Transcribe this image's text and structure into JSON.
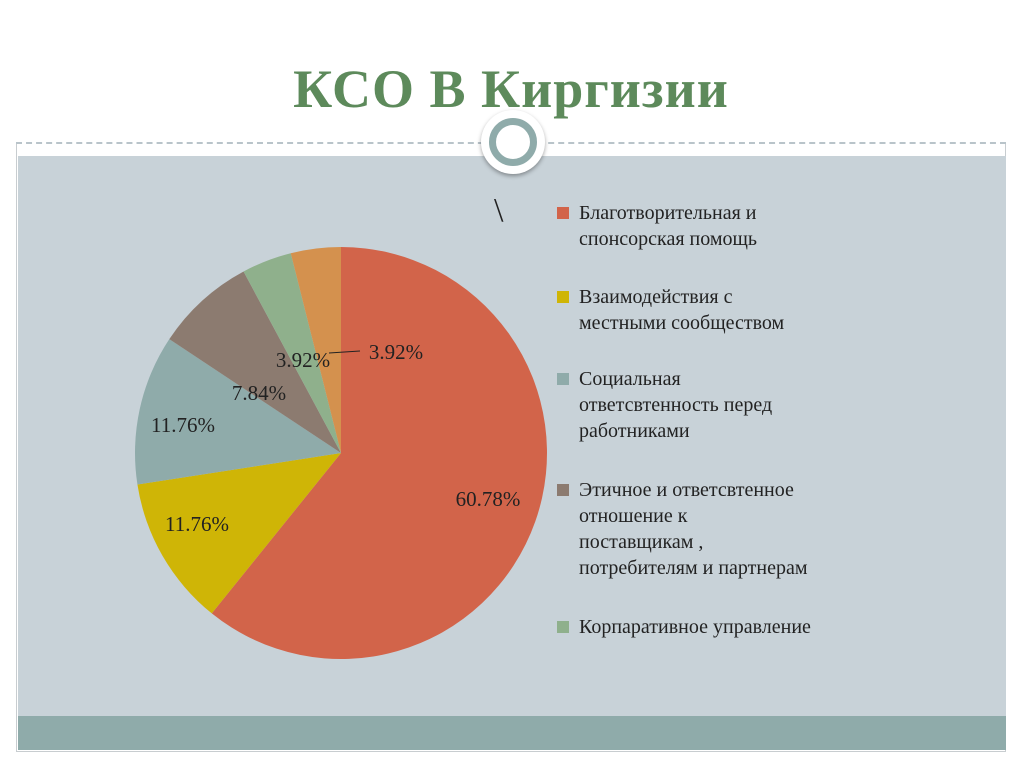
{
  "slide": {
    "title": "КСО В Киргизии",
    "stray_mark": "\\"
  },
  "colors": {
    "title": "#5d8a5b",
    "content_bg": "#c8d2d8",
    "footer_bar": "#8fabaa"
  },
  "chart_data": {
    "type": "pie",
    "title": "",
    "legend_position": "right",
    "start_angle_deg": 0,
    "direction": "clockwise",
    "slices": [
      {
        "label": "Благотворительная и\nспонсорская помощь",
        "value": 60.78,
        "display": "60.78%",
        "color": "#d2644a",
        "show_in_legend": true
      },
      {
        "label": "Взаимодействия с\nместными сообществом",
        "value": 11.76,
        "display": "11.76%",
        "color": "#cfb506",
        "show_in_legend": true
      },
      {
        "label": "Социальная\nответсвтенность перед\nработниками",
        "value": 11.76,
        "display": "11.76%",
        "color": "#8fabaa",
        "show_in_legend": true
      },
      {
        "label": "Этичное и ответсвтенное\nотношение к\nпоставщикам ,\nпотребителям и партнерам",
        "value": 7.84,
        "display": "7.84%",
        "color": "#8c7b70",
        "show_in_legend": true
      },
      {
        "label": "Корпаративное управление",
        "value": 3.92,
        "display": "3.92%",
        "color": "#8fb08c",
        "show_in_legend": true
      },
      {
        "label": "",
        "value": 3.92,
        "display": "3.92%",
        "color": "#d4914e",
        "show_in_legend": false
      }
    ]
  }
}
